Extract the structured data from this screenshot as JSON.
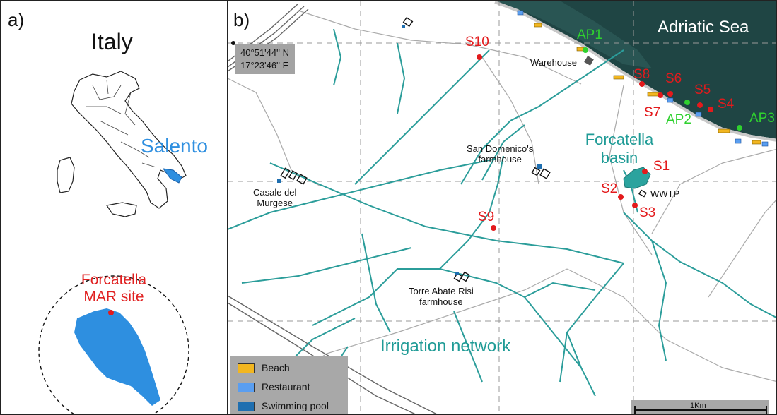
{
  "panel_a": {
    "label": "a)",
    "country": "Italy",
    "region": "Salento",
    "site": [
      "Forcatella",
      "MAR site"
    ]
  },
  "panel_b": {
    "label": "b)",
    "sea": "Adriatic Sea",
    "coords": [
      "40°51'44'' N",
      "17°23'46'' E"
    ],
    "basin": [
      "Forcatella",
      "basin"
    ],
    "network": "Irrigation network",
    "sites_red": [
      "S1",
      "S2",
      "S3",
      "S4",
      "S5",
      "S6",
      "S7",
      "S8",
      "S9",
      "S10"
    ],
    "sites_green": [
      "AP1",
      "AP2",
      "AP3"
    ],
    "places": {
      "warehouse": "Warehouse",
      "wwtp": "WWTP",
      "san_domenico": [
        "San Domenico's",
        "farmhouse"
      ],
      "casale": [
        "Casale del",
        "Murgese"
      ],
      "torre": [
        "Torre Abate Risi",
        "farmhouse"
      ]
    },
    "legend": [
      {
        "label": "Beach",
        "color": "#f2b620"
      },
      {
        "label": "Restaurant",
        "color": "#5a9ef0"
      },
      {
        "label": "Swimming pool",
        "color": "#1f6fb0"
      }
    ],
    "scale": "1Km"
  },
  "colors": {
    "channel": "#2b9d9a",
    "sea": "#1d3f3e",
    "salento": "#2e8fe0",
    "site": "#e31a1c",
    "ap": "#2fd12f"
  }
}
